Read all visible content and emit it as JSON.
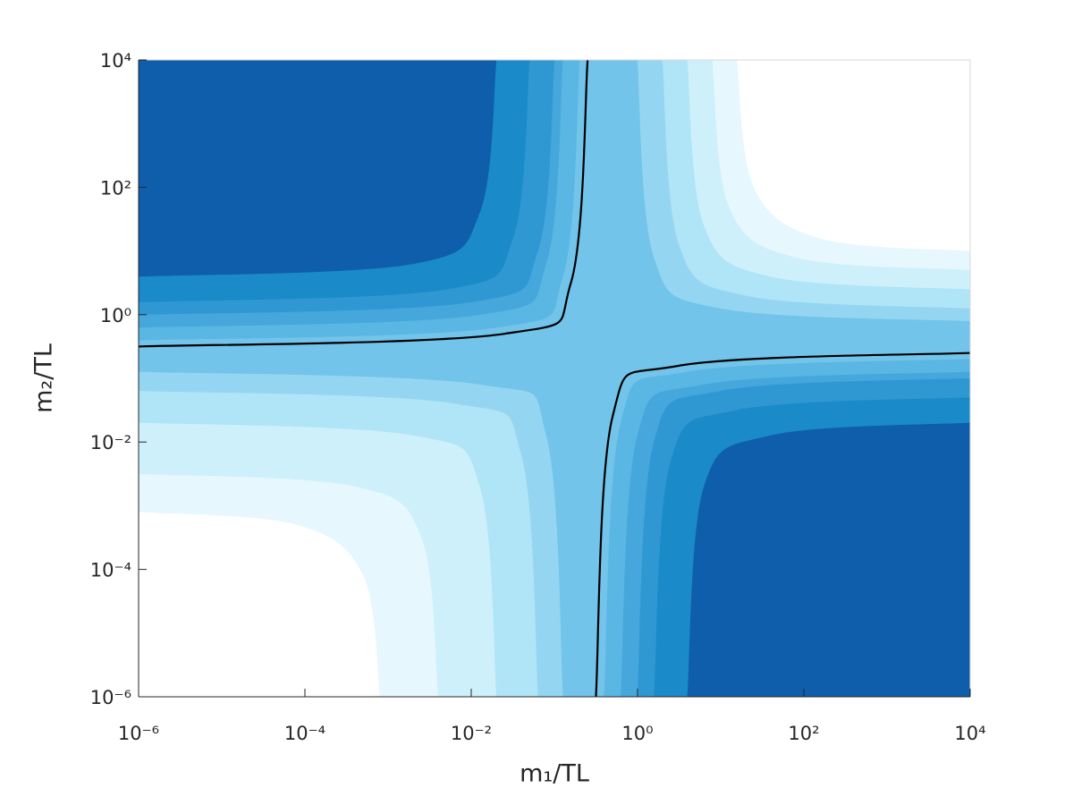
{
  "chart_data": {
    "type": "contour",
    "xlabel": "m₁/TL",
    "ylabel": "m₂/TL",
    "xscale": "log",
    "yscale": "log",
    "xlim": [
      1e-06,
      10000
    ],
    "ylim": [
      1e-06,
      10000
    ],
    "xticks": [
      {
        "value": 1e-06,
        "label": "10⁻⁶"
      },
      {
        "value": 0.0001,
        "label": "10⁻⁴"
      },
      {
        "value": 0.01,
        "label": "10⁻²"
      },
      {
        "value": 1,
        "label": "10⁰"
      },
      {
        "value": 100,
        "label": "10²"
      },
      {
        "value": 10000,
        "label": "10⁴"
      }
    ],
    "yticks": [
      {
        "value": 1e-06,
        "label": "10⁻⁶"
      },
      {
        "value": 0.0001,
        "label": "10⁻⁴"
      },
      {
        "value": 0.01,
        "label": "10⁻²"
      },
      {
        "value": 1,
        "label": "10⁰"
      },
      {
        "value": 100,
        "label": "10²"
      },
      {
        "value": 10000,
        "label": "10⁴"
      }
    ],
    "background_color": "#72c4ea",
    "contours": [
      {
        "color": "#5ab6e3",
        "x": [
          1e-06,
          0.02,
          0.126,
          0.2
        ],
        "y": [
          0.398,
          0.631,
          3.98,
          10000
        ]
      },
      {
        "color": "#45a7db",
        "x": [
          1e-06,
          0.0126,
          0.0794,
          0.126
        ],
        "y": [
          0.631,
          1,
          6.31,
          10000
        ]
      },
      {
        "color": "#2f98d3",
        "x": [
          1e-06,
          0.01,
          0.0631,
          0.1
        ],
        "y": [
          1,
          1.58,
          10,
          10000
        ]
      },
      {
        "color": "#1a8ac9",
        "x": [
          1e-06,
          0.00501,
          0.0316,
          0.0501
        ],
        "y": [
          1.58,
          2.51,
          15.8,
          10000
        ]
      },
      {
        "color": "#0f5eab",
        "x": [
          1e-06,
          0.002,
          0.0126,
          0.02
        ],
        "y": [
          3.98,
          6.31,
          39.8,
          10000
        ]
      },
      {
        "color": "#5ab6e3",
        "x": [
          10000,
          3.98,
          0.631,
          0.398
        ],
        "y": [
          0.2,
          0.126,
          0.02,
          1e-06
        ]
      },
      {
        "color": "#45a7db",
        "x": [
          10000,
          6.31,
          1,
          0.631
        ],
        "y": [
          0.126,
          0.0794,
          0.0126,
          1e-06
        ]
      },
      {
        "color": "#2f98d3",
        "x": [
          10000,
          10,
          1.58,
          1
        ],
        "y": [
          0.1,
          0.0631,
          0.01,
          1e-06
        ]
      },
      {
        "color": "#1a8ac9",
        "x": [
          10000,
          15.8,
          2.51,
          1.58
        ],
        "y": [
          0.0501,
          0.0316,
          0.00501,
          1e-06
        ]
      },
      {
        "color": "#0f5eab",
        "x": [
          10000,
          39.8,
          6.31,
          3.98
        ],
        "y": [
          0.02,
          0.0126,
          0.002,
          1e-06
        ]
      },
      {
        "color": "#94d6f1",
        "x": [
          1e-06,
          0.0126,
          0.0794,
          0.126
        ],
        "y": [
          0.126,
          0.0794,
          0.0126,
          1e-06
        ]
      },
      {
        "color": "#b0e4f7",
        "x": [
          1e-06,
          0.00631,
          0.0398,
          0.0631
        ],
        "y": [
          0.0631,
          0.0398,
          0.00631,
          1e-06
        ]
      },
      {
        "color": "#cdf0fb",
        "x": [
          1e-06,
          0.002,
          0.0126,
          0.02
        ],
        "y": [
          0.02,
          0.0126,
          0.002,
          1e-06
        ]
      },
      {
        "color": "#e6f7fd",
        "x": [
          1e-06,
          0.000398,
          0.00251,
          0.00398
        ],
        "y": [
          0.00316,
          0.002,
          0.000316,
          1e-06
        ]
      },
      {
        "color": "#ffffff",
        "x": [
          1e-06,
          7.94e-05,
          0.000501,
          0.000794
        ],
        "y": [
          0.000794,
          0.000501,
          7.94e-05,
          1e-06
        ]
      },
      {
        "color": "#94d6f1",
        "x": [
          10000,
          10,
          1.58,
          1
        ],
        "y": [
          0.794,
          1.26,
          7.94,
          10000
        ]
      },
      {
        "color": "#b0e4f7",
        "x": [
          10000,
          20,
          3.16,
          2
        ],
        "y": [
          1.26,
          2,
          12.6,
          10000
        ]
      },
      {
        "color": "#cdf0fb",
        "x": [
          10000,
          39.8,
          6.31,
          3.98
        ],
        "y": [
          2.51,
          3.98,
          25.1,
          10000
        ]
      },
      {
        "color": "#e6f7fd",
        "x": [
          10000,
          79.4,
          12.6,
          7.94
        ],
        "y": [
          5.01,
          7.94,
          50.1,
          10000
        ]
      },
      {
        "color": "#ffffff",
        "x": [
          10000,
          158,
          25.1,
          15.8
        ],
        "y": [
          10,
          15.8,
          100,
          10000
        ]
      }
    ],
    "lines": [
      {
        "color": "#000000",
        "x": [
          1e-06,
          0.0251,
          0.158,
          0.251,
          null,
          10000,
          3.16,
          0.501,
          0.316
        ],
        "y": [
          0.316,
          0.501,
          3.16,
          10000,
          null,
          0.251,
          0.158,
          0.0251,
          1e-06
        ]
      }
    ]
  }
}
